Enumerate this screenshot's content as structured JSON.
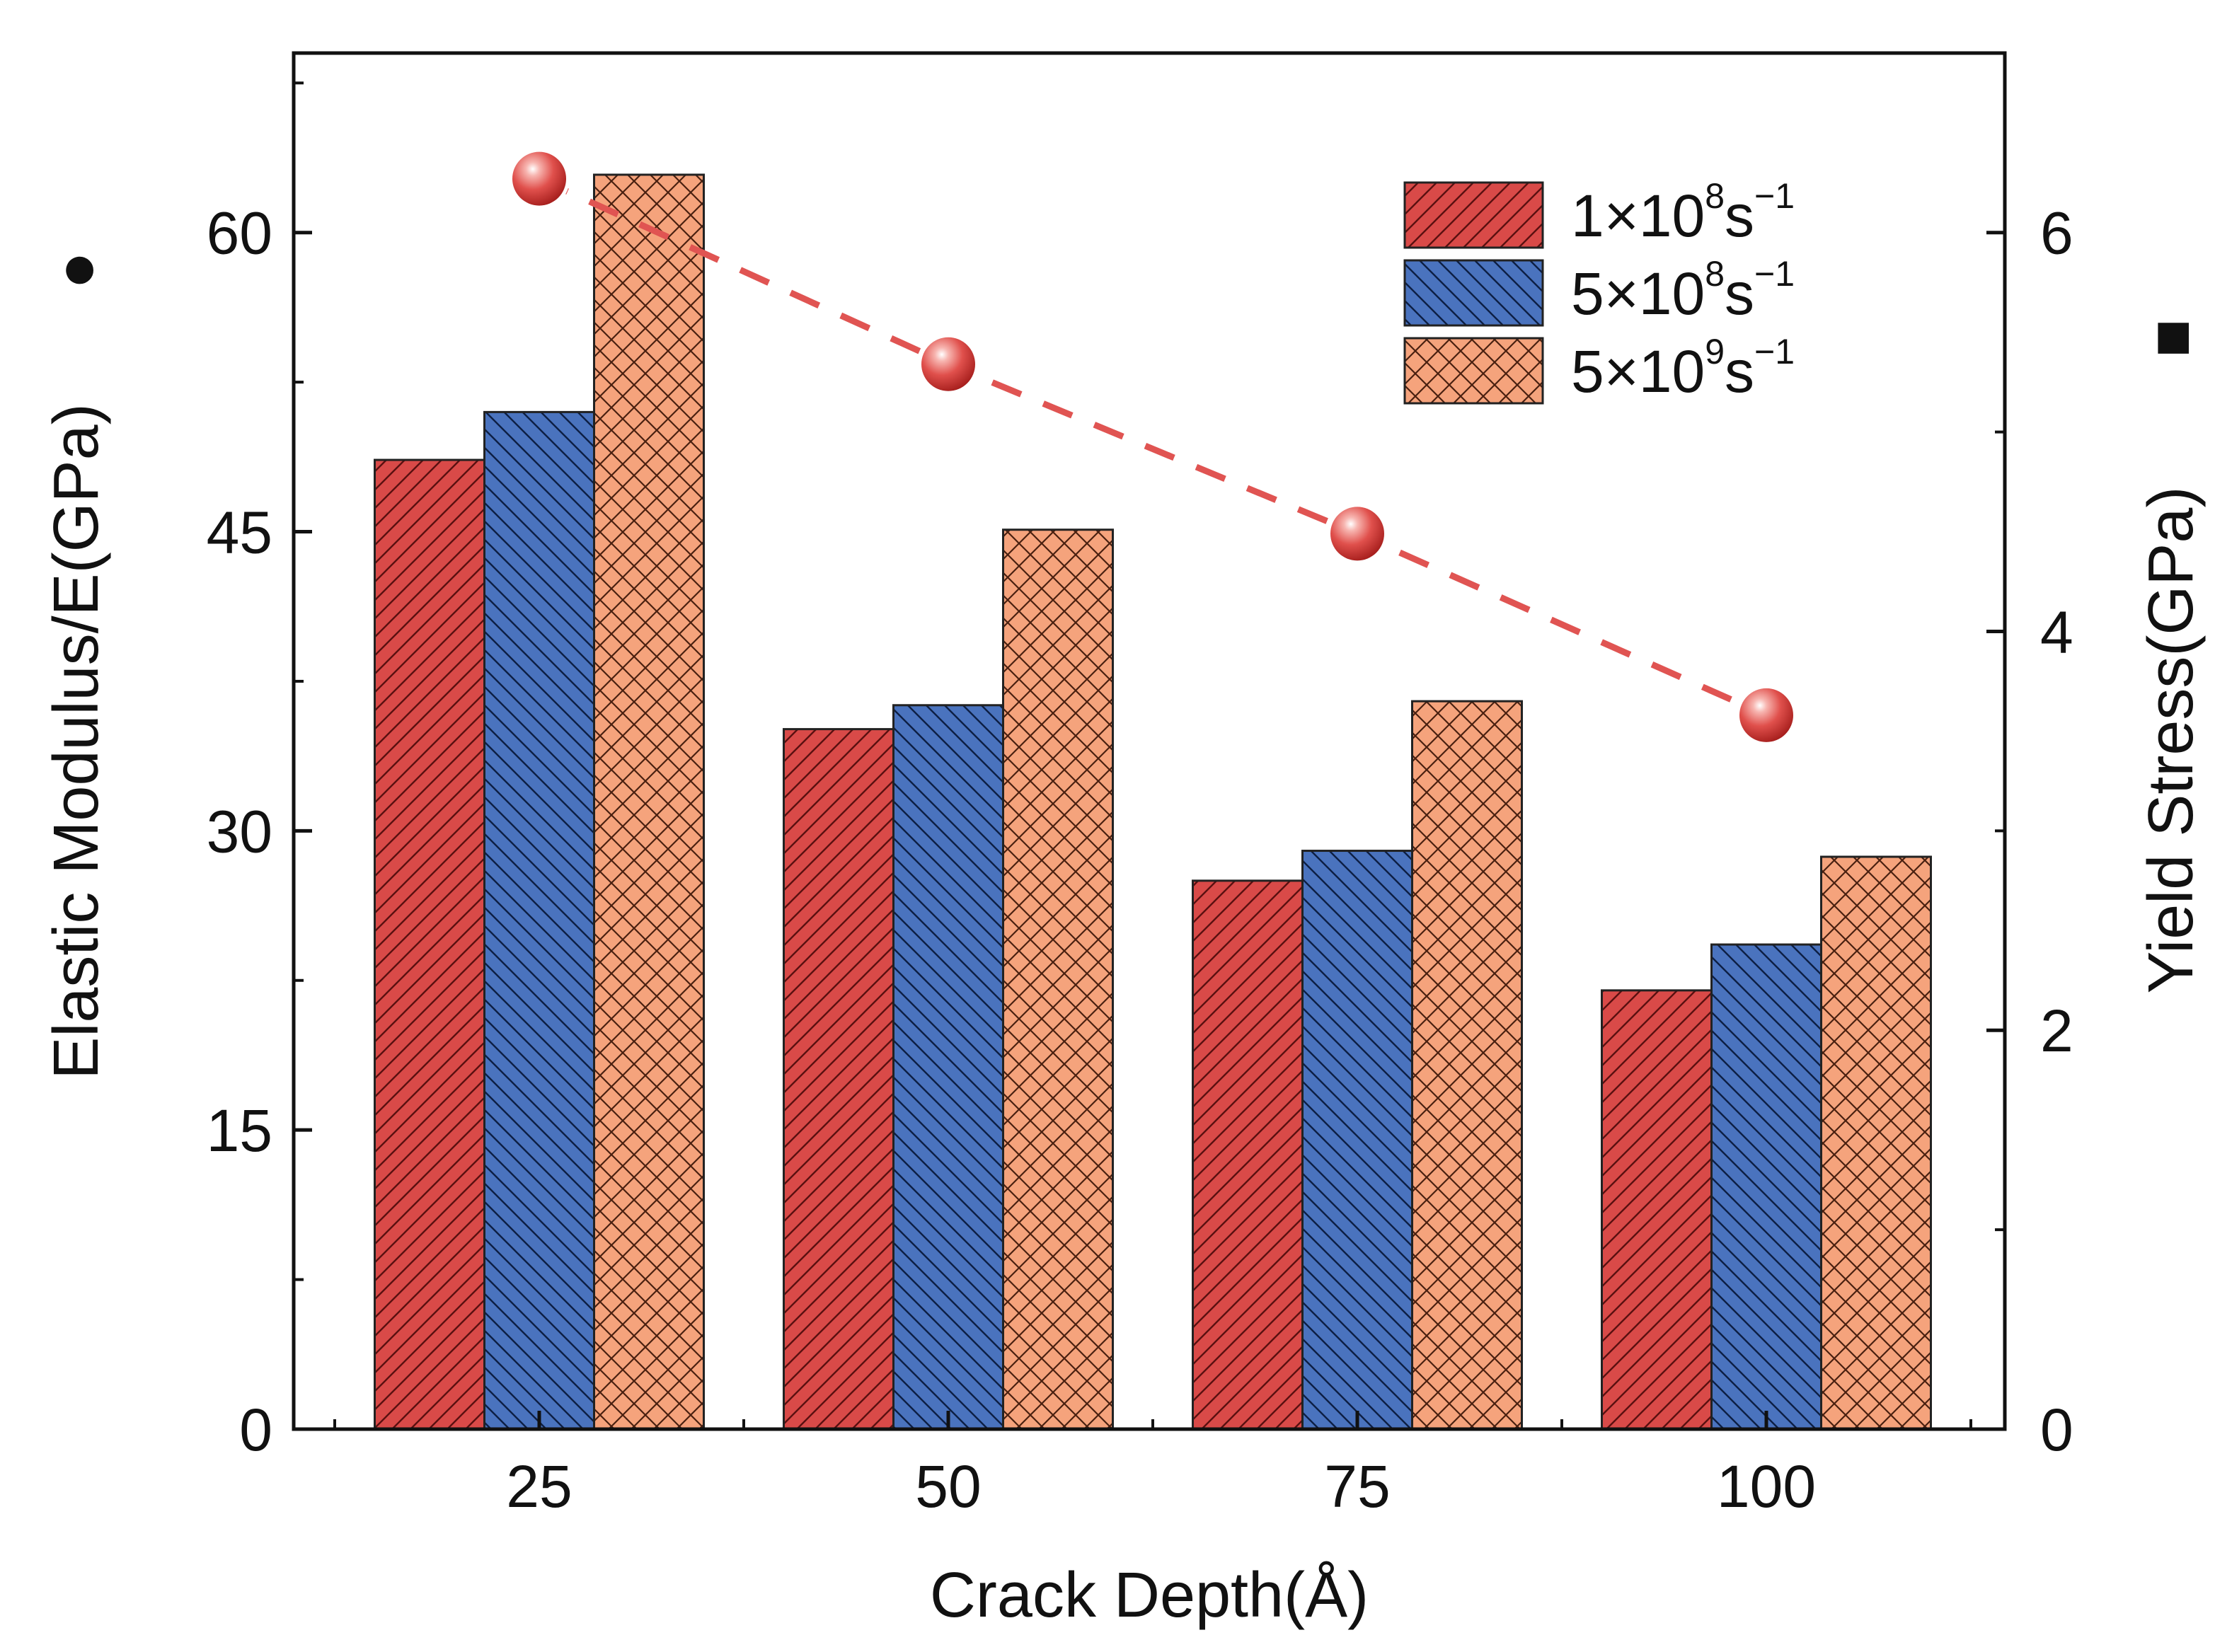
{
  "chart_data": {
    "type": "bar",
    "title": "",
    "xlabel": "Crack Depth(Å)",
    "ylabel_left": "Elastic Modulus/E(GPa)",
    "ylabel_right": "Yield Stress(GPa)",
    "left_marker_symbol": "●",
    "right_marker_symbol": "■",
    "categories": [
      "25",
      "50",
      "75",
      "100"
    ],
    "ylim_left": [
      0,
      69
    ],
    "ylim_right": [
      0,
      6.9
    ],
    "yticks_left": [
      "0",
      "15",
      "30",
      "45",
      "60"
    ],
    "yticks_right": [
      "0",
      "2",
      "4",
      "6"
    ],
    "series": [
      {
        "name": "1×10⁸s⁻¹",
        "legend_base": "1×10",
        "legend_exp": "8",
        "legend_unit": "s",
        "legend_unit_exp": "−1",
        "color": "#d94a48",
        "pattern": "hatch-right",
        "values": [
          48.6,
          35.1,
          27.5,
          22.0
        ]
      },
      {
        "name": "5×10⁸s⁻¹",
        "legend_base": "5×10",
        "legend_exp": "8",
        "legend_unit": "s",
        "legend_unit_exp": "−1",
        "color": "#4a73be",
        "pattern": "hatch-left",
        "values": [
          51.0,
          36.3,
          29.0,
          24.3
        ]
      },
      {
        "name": "5×10⁹s⁻¹",
        "legend_base": "5×10",
        "legend_exp": "9",
        "legend_unit": "s",
        "legend_unit_exp": "−1",
        "color": "#f5a37c",
        "pattern": "crosshatch",
        "values": [
          62.9,
          45.1,
          36.5,
          28.7
        ]
      }
    ],
    "line_series": {
      "name": "Yield Stress",
      "axis": "right",
      "color": "#e05452",
      "style": "dashed",
      "marker": "sphere",
      "values": [
        6.27,
        5.34,
        4.49,
        3.58
      ]
    },
    "legend_position": "top-right",
    "grid": false
  }
}
